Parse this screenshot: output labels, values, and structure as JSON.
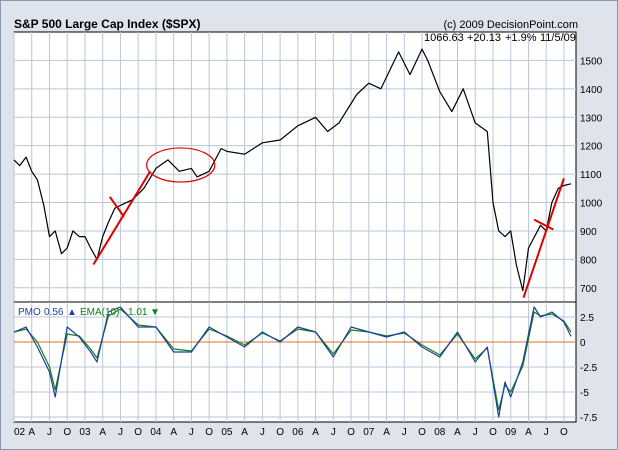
{
  "chart_data": {
    "type": "line",
    "title": "S&P 500 Large Cap Index ($SPX)",
    "credit": "(c) 2009 DecisionPoint.com",
    "last_quote": {
      "value": "1066.63",
      "change": "+20.13",
      "pct": "+1.9%",
      "date": "11/5/09"
    },
    "price_panel": {
      "ylim": [
        650,
        1600
      ],
      "yticks": [
        700,
        800,
        900,
        1000,
        1100,
        1200,
        1300,
        1400,
        1500
      ],
      "ytick_labels": [
        "700",
        "800",
        "900",
        "1000",
        "1100",
        "1200",
        "1300",
        "1400",
        "1500"
      ],
      "series": [
        {
          "color": "#000000",
          "x": [
            2002.0,
            2002.08,
            2002.17,
            2002.25,
            2002.33,
            2002.42,
            2002.5,
            2002.58,
            2002.67,
            2002.75,
            2002.83,
            2002.92,
            2003.0,
            2003.08,
            2003.17,
            2003.25,
            2003.33,
            2003.42,
            2003.5,
            2003.67,
            2003.83,
            2004.0,
            2004.17,
            2004.33,
            2004.5,
            2004.58,
            2004.75,
            2004.92,
            2005.0,
            2005.25,
            2005.5,
            2005.75,
            2006.0,
            2006.25,
            2006.42,
            2006.58,
            2006.83,
            2007.0,
            2007.17,
            2007.42,
            2007.58,
            2007.75,
            2007.83,
            2008.0,
            2008.17,
            2008.33,
            2008.5,
            2008.67,
            2008.75,
            2008.83,
            2008.92,
            2009.0,
            2009.08,
            2009.17,
            2009.25,
            2009.42,
            2009.5,
            2009.58,
            2009.67,
            2009.75,
            2009.85
          ],
          "y": [
            1150,
            1130,
            1160,
            1110,
            1080,
            990,
            880,
            900,
            820,
            840,
            900,
            880,
            880,
            840,
            800,
            880,
            930,
            980,
            990,
            1010,
            1050,
            1120,
            1150,
            1110,
            1120,
            1090,
            1110,
            1190,
            1180,
            1170,
            1210,
            1220,
            1270,
            1300,
            1250,
            1280,
            1380,
            1420,
            1400,
            1530,
            1450,
            1540,
            1500,
            1390,
            1320,
            1400,
            1280,
            1250,
            1000,
            900,
            880,
            900,
            780,
            690,
            840,
            920,
            900,
            1000,
            1050,
            1060,
            1066
          ]
        }
      ],
      "annotations": [
        {
          "type": "trendline",
          "color": "#dd0000",
          "x": [
            2003.12,
            2003.92
          ],
          "y": [
            782,
            1110
          ]
        },
        {
          "type": "trendline",
          "color": "#dd0000",
          "x": [
            2003.35,
            2003.55
          ],
          "y": [
            1020,
            950
          ]
        },
        {
          "type": "trendline",
          "color": "#dd0000",
          "x": [
            2009.18,
            2009.75
          ],
          "y": [
            665,
            1085
          ]
        },
        {
          "type": "trendline",
          "color": "#dd0000",
          "x": [
            2009.33,
            2009.6
          ],
          "y": [
            940,
            905
          ]
        },
        {
          "type": "ellipse",
          "color": "#dd0000",
          "cx": 2004.35,
          "cy": 1132,
          "rx": 0.48,
          "ry": 60
        }
      ]
    },
    "pmo_panel": {
      "ylim": [
        -8,
        4
      ],
      "yticks": [
        2.5,
        0,
        -2.5,
        -5,
        -7.5
      ],
      "ytick_labels": [
        "2.5",
        "0",
        "-2.5",
        "-5",
        "-7.5"
      ],
      "zero_line_color": "#e07020",
      "legend": [
        {
          "label": "PMO",
          "value": "0.56",
          "arrow": "▲",
          "color": "#1f3fa0"
        },
        {
          "label": "EMA(10)",
          "value": "1.01",
          "arrow": "▼",
          "color": "#108010"
        }
      ],
      "series": [
        {
          "name": "PMO",
          "color": "#1f3fa0",
          "x": [
            2002.0,
            2002.17,
            2002.33,
            2002.5,
            2002.58,
            2002.75,
            2002.92,
            2003.08,
            2003.17,
            2003.33,
            2003.5,
            2003.75,
            2004.0,
            2004.25,
            2004.5,
            2004.75,
            2005.0,
            2005.25,
            2005.5,
            2005.75,
            2006.0,
            2006.25,
            2006.5,
            2006.75,
            2007.0,
            2007.25,
            2007.5,
            2007.75,
            2008.0,
            2008.25,
            2008.5,
            2008.67,
            2008.83,
            2008.92,
            2009.0,
            2009.17,
            2009.33,
            2009.42,
            2009.58,
            2009.75,
            2009.85
          ],
          "y": [
            1.0,
            1.5,
            -0.5,
            -3.0,
            -5.5,
            1.5,
            0.5,
            -1.0,
            -2.0,
            3.0,
            3.5,
            1.5,
            1.5,
            -1.0,
            -1.0,
            1.5,
            0.5,
            -0.5,
            1.0,
            0.0,
            1.5,
            1.0,
            -1.5,
            1.5,
            1.0,
            0.5,
            1.0,
            -0.5,
            -1.5,
            1.0,
            -2.0,
            -0.5,
            -7.5,
            -4.0,
            -5.5,
            -2.0,
            3.5,
            2.5,
            3.0,
            2.0,
            0.56
          ]
        },
        {
          "name": "EMA(10)",
          "color": "#108010",
          "x": [
            2002.0,
            2002.17,
            2002.33,
            2002.5,
            2002.58,
            2002.75,
            2002.92,
            2003.08,
            2003.17,
            2003.33,
            2003.5,
            2003.75,
            2004.0,
            2004.25,
            2004.5,
            2004.75,
            2005.0,
            2005.25,
            2005.5,
            2005.75,
            2006.0,
            2006.25,
            2006.5,
            2006.75,
            2007.0,
            2007.25,
            2007.5,
            2007.75,
            2008.0,
            2008.25,
            2008.5,
            2008.67,
            2008.83,
            2008.92,
            2009.0,
            2009.17,
            2009.33,
            2009.42,
            2009.58,
            2009.75,
            2009.85
          ],
          "y": [
            1.0,
            1.3,
            0.0,
            -2.5,
            -4.8,
            0.8,
            0.6,
            -0.7,
            -1.6,
            2.6,
            3.3,
            1.7,
            1.5,
            -0.7,
            -0.9,
            1.3,
            0.6,
            -0.3,
            0.9,
            0.1,
            1.3,
            1.0,
            -1.2,
            1.2,
            1.0,
            0.6,
            0.9,
            -0.3,
            -1.3,
            0.8,
            -1.7,
            -0.6,
            -6.8,
            -4.3,
            -5.0,
            -2.4,
            3.0,
            2.6,
            2.8,
            2.1,
            1.01
          ]
        }
      ]
    },
    "x_axis": {
      "range": [
        2002.0,
        2009.92
      ],
      "tick_labels": [
        "02",
        "A",
        "J",
        "O",
        "03",
        "A",
        "J",
        "O",
        "04",
        "A",
        "J",
        "O",
        "05",
        "A",
        "J",
        "O",
        "06",
        "A",
        "J",
        "O",
        "07",
        "A",
        "J",
        "O",
        "08",
        "A",
        "J",
        "O",
        "09",
        "A",
        "J",
        "O"
      ],
      "tick_values": [
        2002.0,
        2002.25,
        2002.5,
        2002.75,
        2003.0,
        2003.25,
        2003.5,
        2003.75,
        2004.0,
        2004.25,
        2004.5,
        2004.75,
        2005.0,
        2005.25,
        2005.5,
        2005.75,
        2006.0,
        2006.25,
        2006.5,
        2006.75,
        2007.0,
        2007.25,
        2007.5,
        2007.75,
        2008.0,
        2008.25,
        2008.5,
        2008.75,
        2009.0,
        2009.25,
        2009.5,
        2009.75
      ]
    },
    "grid": true,
    "colors": {
      "background": "#ffffff",
      "frame": "#dfe3ec",
      "grid": "#b8c6d8"
    }
  }
}
